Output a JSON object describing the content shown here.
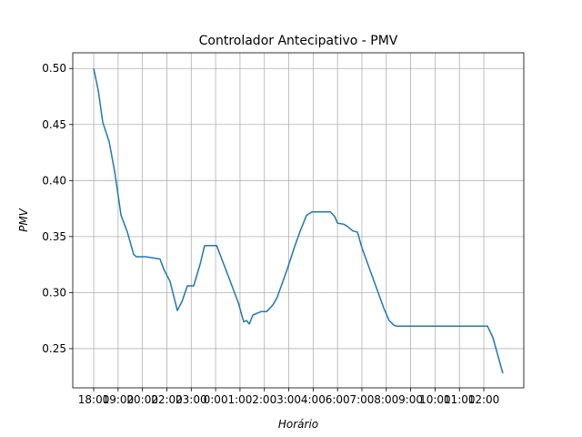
{
  "chart_data": {
    "type": "line",
    "title": "Controlador Antecipativo - PMV",
    "x_label": "Horário",
    "y_label": "PMV",
    "x": [
      0,
      0.19,
      0.37,
      0.63,
      0.86,
      1.12,
      1.38,
      1.64,
      1.75,
      2.13,
      2.42,
      2.72,
      2.87,
      3.13,
      3.43,
      3.62,
      3.84,
      4.1,
      4.36,
      4.55,
      5.04,
      5.48,
      5.93,
      6.15,
      6.27,
      6.38,
      6.53,
      6.86,
      7.09,
      7.35,
      7.53,
      7.94,
      8.24,
      8.47,
      8.73,
      8.95,
      9.7,
      9.88,
      10.0,
      10.26,
      10.41,
      10.63,
      10.82,
      11.0,
      11.45,
      11.9,
      12.12,
      12.31,
      12.42,
      16.15,
      16.37,
      16.78
    ],
    "series": [
      {
        "name": "PMV",
        "color": "#1f77b4",
        "values": [
          0.5,
          0.48,
          0.452,
          0.435,
          0.408,
          0.369,
          0.354,
          0.334,
          0.332,
          0.332,
          0.331,
          0.33,
          0.321,
          0.31,
          0.284,
          0.292,
          0.306,
          0.306,
          0.325,
          0.342,
          0.342,
          0.317,
          0.291,
          0.274,
          0.275,
          0.272,
          0.28,
          0.283,
          0.283,
          0.289,
          0.296,
          0.321,
          0.341,
          0.355,
          0.369,
          0.372,
          0.372,
          0.368,
          0.362,
          0.361,
          0.359,
          0.355,
          0.354,
          0.34,
          0.313,
          0.286,
          0.275,
          0.271,
          0.27,
          0.27,
          0.26,
          0.228
        ]
      }
    ],
    "xlim": [
      -0.86,
      17.64
    ],
    "ylim": [
      0.215,
      0.514
    ],
    "xticks": [
      {
        "value": 0,
        "label": "18:00"
      },
      {
        "value": 1,
        "label": "19:00"
      },
      {
        "value": 2,
        "label": "20:00"
      },
      {
        "value": 3,
        "label": "22:00"
      },
      {
        "value": 4,
        "label": "23:00"
      },
      {
        "value": 5,
        "label": "0:00"
      },
      {
        "value": 6,
        "label": "1:00"
      },
      {
        "value": 7,
        "label": "2:00"
      },
      {
        "value": 8,
        "label": "3:00"
      },
      {
        "value": 9,
        "label": "4:00"
      },
      {
        "value": 10,
        "label": "6:00"
      },
      {
        "value": 11,
        "label": "7:00"
      },
      {
        "value": 12,
        "label": "8:00"
      },
      {
        "value": 13,
        "label": "9:00"
      },
      {
        "value": 14,
        "label": "10:00"
      },
      {
        "value": 15,
        "label": "11:00"
      },
      {
        "value": 16,
        "label": "12:00"
      }
    ],
    "yticks": [
      {
        "value": 0.25,
        "label": "0.25"
      },
      {
        "value": 0.3,
        "label": "0.30"
      },
      {
        "value": 0.35,
        "label": "0.35"
      },
      {
        "value": 0.4,
        "label": "0.40"
      },
      {
        "value": 0.45,
        "label": "0.45"
      },
      {
        "value": 0.5,
        "label": "0.50"
      }
    ],
    "grid": true
  }
}
